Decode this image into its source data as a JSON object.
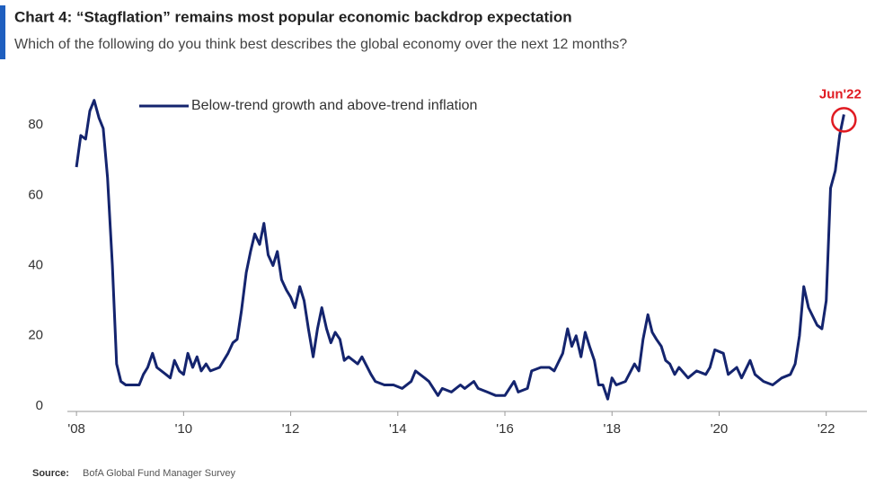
{
  "chart_data": {
    "type": "line",
    "title": "Chart 4: “Stagflation” remains most popular economic backdrop expectation",
    "subtitle": "Which of the following do you think best describes the global economy over the next 12 months?",
    "source": {
      "label": "Source:",
      "text": "BofA Global Fund Manager Survey"
    },
    "annotation": "Jun'22",
    "x": [
      2008.0,
      2008.08,
      2008.17,
      2008.25,
      2008.33,
      2008.42,
      2008.5,
      2008.58,
      2008.67,
      2008.75,
      2008.83,
      2008.92,
      2009.0,
      2009.17,
      2009.25,
      2009.33,
      2009.42,
      2009.5,
      2009.67,
      2009.75,
      2009.83,
      2009.92,
      2010.0,
      2010.08,
      2010.17,
      2010.25,
      2010.33,
      2010.42,
      2010.5,
      2010.67,
      2010.83,
      2010.92,
      2011.0,
      2011.08,
      2011.17,
      2011.25,
      2011.33,
      2011.42,
      2011.5,
      2011.58,
      2011.67,
      2011.75,
      2011.83,
      2011.92,
      2012.0,
      2012.08,
      2012.17,
      2012.25,
      2012.33,
      2012.42,
      2012.5,
      2012.58,
      2012.67,
      2012.75,
      2012.83,
      2012.92,
      2013.0,
      2013.08,
      2013.25,
      2013.33,
      2013.5,
      2013.58,
      2013.75,
      2013.92,
      2014.08,
      2014.25,
      2014.33,
      2014.5,
      2014.58,
      2014.75,
      2014.83,
      2015.0,
      2015.17,
      2015.25,
      2015.42,
      2015.5,
      2015.67,
      2015.83,
      2016.0,
      2016.17,
      2016.25,
      2016.42,
      2016.5,
      2016.67,
      2016.83,
      2016.92,
      2017.08,
      2017.17,
      2017.25,
      2017.33,
      2017.42,
      2017.5,
      2017.58,
      2017.67,
      2017.75,
      2017.83,
      2017.92,
      2018.0,
      2018.08,
      2018.25,
      2018.42,
      2018.5,
      2018.58,
      2018.67,
      2018.75,
      2018.83,
      2018.92,
      2019.0,
      2019.08,
      2019.17,
      2019.25,
      2019.42,
      2019.58,
      2019.75,
      2019.83,
      2019.92,
      2020.08,
      2020.17,
      2020.33,
      2020.42,
      2020.58,
      2020.67,
      2020.83,
      2021.0,
      2021.17,
      2021.33,
      2021.42,
      2021.5,
      2021.58,
      2021.67,
      2021.83,
      2021.92,
      2022.0,
      2022.08,
      2022.17,
      2022.25,
      2022.33
    ],
    "series": [
      {
        "name": "Below-trend growth and above-trend inflation",
        "color": "#14246e",
        "values": [
          68,
          77,
          76,
          84,
          87,
          82,
          79,
          65,
          40,
          12,
          7,
          6,
          6,
          6,
          9,
          11,
          15,
          11,
          9,
          8,
          13,
          10,
          9,
          15,
          11,
          14,
          10,
          12,
          10,
          11,
          15,
          18,
          19,
          27,
          38,
          44,
          49,
          46,
          52,
          43,
          40,
          44,
          36,
          33,
          31,
          28,
          34,
          30,
          22,
          14,
          22,
          28,
          22,
          18,
          21,
          19,
          13,
          14,
          12,
          14,
          9,
          7,
          6,
          6,
          5,
          7,
          10,
          8,
          7,
          3,
          5,
          4,
          6,
          5,
          7,
          5,
          4,
          3,
          3,
          7,
          4,
          5,
          10,
          11,
          11,
          10,
          15,
          22,
          17,
          20,
          14,
          21,
          17,
          13,
          6,
          6,
          2,
          8,
          6,
          7,
          12,
          10,
          19,
          26,
          21,
          19,
          17,
          13,
          12,
          9,
          11,
          8,
          10,
          9,
          11,
          16,
          15,
          9,
          11,
          8,
          13,
          9,
          7,
          6,
          8,
          9,
          12,
          20,
          34,
          28,
          23,
          22,
          30,
          62,
          67,
          77,
          83
        ]
      }
    ],
    "xlim": [
      2007.83,
      2022.76
    ],
    "xticks": [
      {
        "value": 2008,
        "label": "'08"
      },
      {
        "value": 2010,
        "label": "'10"
      },
      {
        "value": 2012,
        "label": "'12"
      },
      {
        "value": 2014,
        "label": "'14"
      },
      {
        "value": 2016,
        "label": "'16"
      },
      {
        "value": 2018,
        "label": "'18"
      },
      {
        "value": 2020,
        "label": "'20"
      },
      {
        "value": 2022,
        "label": "'22"
      }
    ],
    "ylim": [
      0,
      90
    ],
    "yticks": [
      0,
      20,
      40,
      60,
      80
    ],
    "grid": false,
    "legend": "upper left",
    "annotation_color": "#e01b22"
  }
}
